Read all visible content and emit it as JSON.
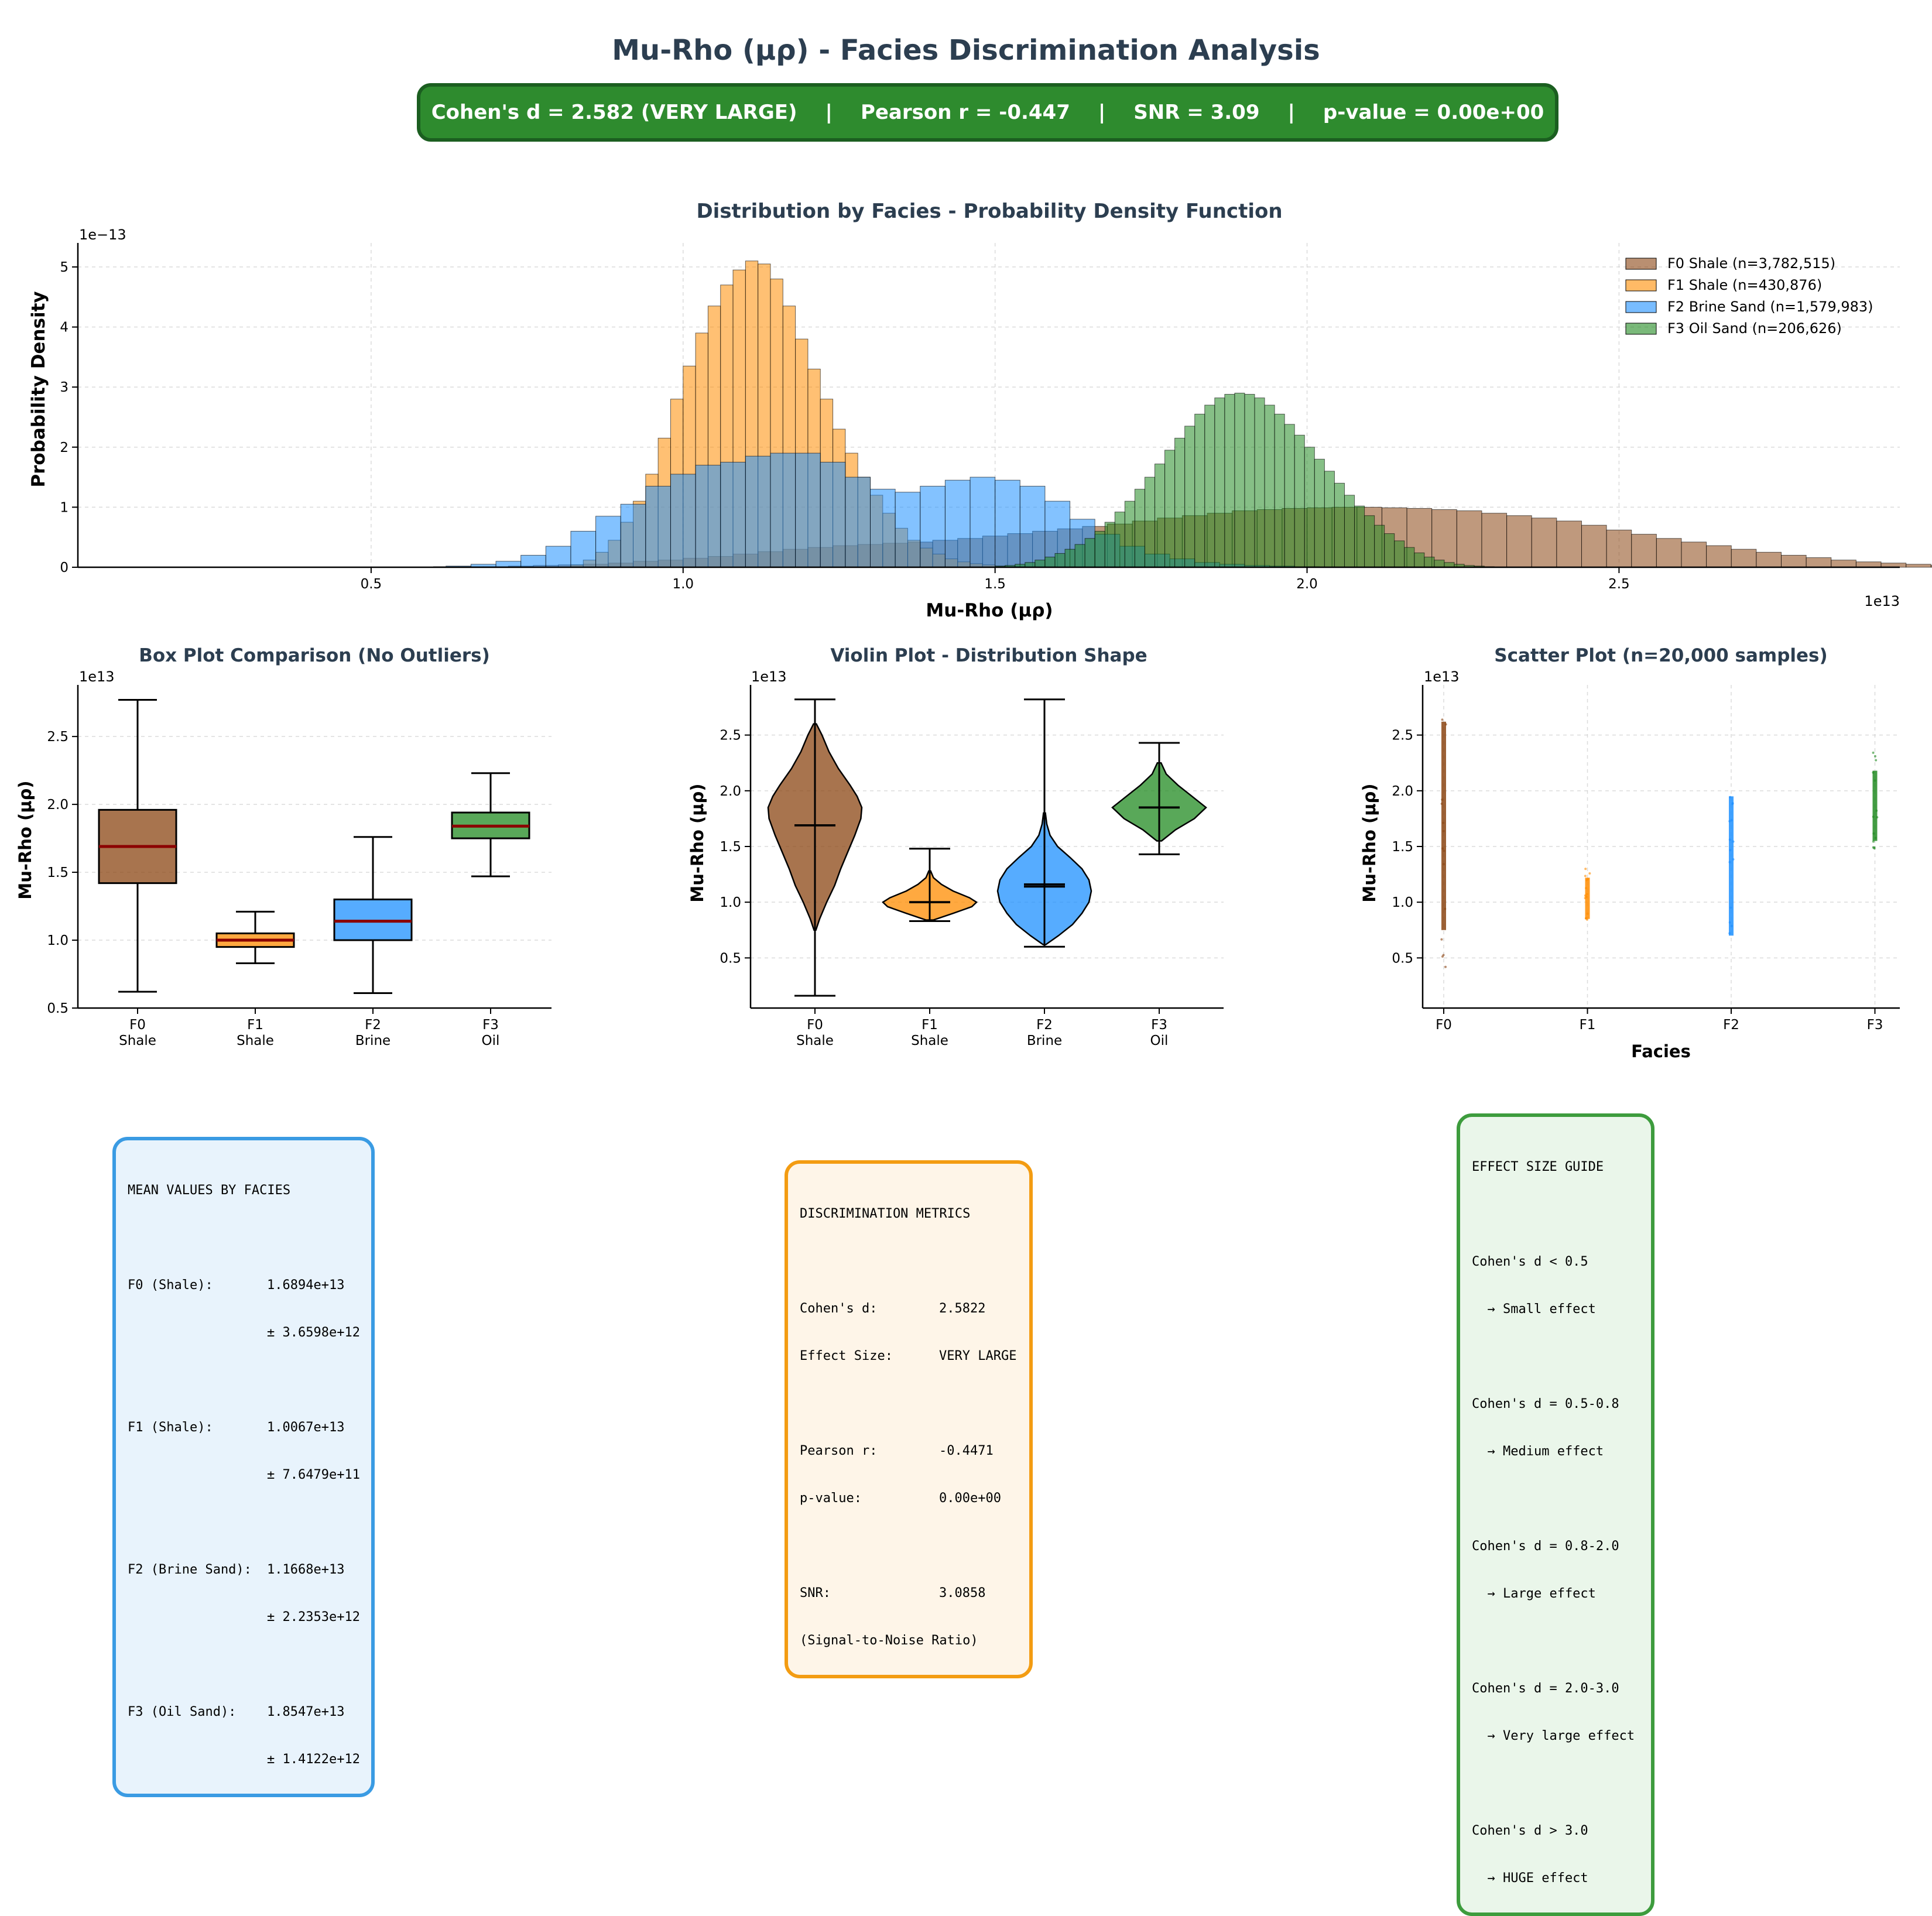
{
  "title": "Mu-Rho (μρ) - Facies Discrimination Analysis",
  "banner": {
    "items": [
      "Cohen's d = 2.582 (VERY LARGE)",
      "Pearson r = -0.447",
      "SNR = 3.09",
      "p-value = 0.00e+00"
    ],
    "separator": "|"
  },
  "colors": {
    "F0": "#8B4513",
    "F1": "#FF8C00",
    "F2": "#1E90FF",
    "F3": "#228B22",
    "banner": "#2e8b2e",
    "title": "#2c3e50"
  },
  "chart_data": [
    {
      "type": "bar",
      "subtype": "histogram",
      "title": "Distribution by Facies - Probability Density Function",
      "xlabel": "Mu-Rho (μρ)",
      "ylabel": "Probability Density",
      "x_offset_label": "1e13",
      "y_offset_label": "1e−13",
      "xlim": [
        0.03,
        2.95
      ],
      "ylim": [
        0,
        5.4
      ],
      "xticks": [
        "0.5",
        "1.0",
        "1.5",
        "2.0",
        "2.5"
      ],
      "yticks": [
        "0",
        "1",
        "2",
        "3",
        "4",
        "5"
      ],
      "legend_position": "top-right",
      "grid": true,
      "series": [
        {
          "name": "F0 Shale (n=3,782,515)",
          "key": "F0",
          "x_start": 0.6,
          "bin_width": 0.04,
          "values": [
            0.01,
            0.01,
            0.01,
            0.02,
            0.03,
            0.04,
            0.05,
            0.07,
            0.1,
            0.12,
            0.15,
            0.18,
            0.22,
            0.26,
            0.3,
            0.33,
            0.36,
            0.38,
            0.4,
            0.42,
            0.45,
            0.48,
            0.52,
            0.56,
            0.6,
            0.64,
            0.68,
            0.72,
            0.77,
            0.82,
            0.86,
            0.9,
            0.94,
            0.96,
            0.98,
            0.99,
            1.0,
            1.0,
            0.99,
            0.98,
            0.96,
            0.94,
            0.9,
            0.86,
            0.82,
            0.77,
            0.7,
            0.62,
            0.55,
            0.48,
            0.42,
            0.36,
            0.3,
            0.25,
            0.2,
            0.16,
            0.12,
            0.09,
            0.07,
            0.05,
            0.03,
            0.02,
            0.01,
            0.01
          ]
        },
        {
          "name": "F1 Shale (n=430,876)",
          "key": "F1",
          "x_start": 0.82,
          "bin_width": 0.02,
          "values": [
            0.04,
            0.12,
            0.25,
            0.45,
            0.75,
            1.1,
            1.55,
            2.15,
            2.8,
            3.35,
            3.9,
            4.35,
            4.7,
            4.95,
            5.1,
            5.05,
            4.8,
            4.35,
            3.8,
            3.3,
            2.8,
            2.3,
            1.9,
            1.5,
            1.2,
            0.9,
            0.65,
            0.45,
            0.32,
            0.22,
            0.14,
            0.09,
            0.06,
            0.04,
            0.02,
            0.01
          ]
        },
        {
          "name": "F2 Brine Sand (n=1,579,983)",
          "key": "F2",
          "x_start": 0.62,
          "bin_width": 0.04,
          "values": [
            0.02,
            0.05,
            0.1,
            0.2,
            0.35,
            0.6,
            0.85,
            1.05,
            1.35,
            1.55,
            1.7,
            1.75,
            1.85,
            1.9,
            1.9,
            1.75,
            1.5,
            1.3,
            1.25,
            1.35,
            1.45,
            1.5,
            1.45,
            1.35,
            1.1,
            0.8,
            0.55,
            0.35,
            0.22,
            0.14,
            0.08,
            0.05,
            0.03,
            0.02,
            0.01
          ]
        },
        {
          "name": "F3 Oil Sand (n=206,626)",
          "key": "F3",
          "x_start": 1.5,
          "bin_width": 0.016,
          "values": [
            0.02,
            0.03,
            0.05,
            0.08,
            0.12,
            0.17,
            0.23,
            0.3,
            0.38,
            0.48,
            0.6,
            0.75,
            0.92,
            1.1,
            1.3,
            1.5,
            1.72,
            1.95,
            2.15,
            2.35,
            2.55,
            2.7,
            2.82,
            2.88,
            2.9,
            2.88,
            2.82,
            2.7,
            2.55,
            2.38,
            2.2,
            2.0,
            1.8,
            1.6,
            1.4,
            1.2,
            1.02,
            0.86,
            0.7,
            0.56,
            0.44,
            0.33,
            0.24,
            0.17,
            0.12,
            0.08,
            0.05,
            0.03,
            0.02,
            0.01
          ]
        }
      ]
    },
    {
      "type": "box",
      "title": "Box Plot Comparison (No Outliers)",
      "ylabel": "Mu-Rho (μρ)",
      "y_offset_label": "1e13",
      "ylim": [
        0.5,
        2.88
      ],
      "yticks": [
        "0.5",
        "1.0",
        "1.5",
        "2.0",
        "2.5"
      ],
      "categories": [
        "F0\nShale",
        "F1\nShale",
        "F2\nBrine",
        "F3\nOil"
      ],
      "boxes": [
        {
          "key": "F0",
          "whisker_low": 0.62,
          "q1": 1.42,
          "median": 1.69,
          "q3": 1.96,
          "whisker_high": 2.77
        },
        {
          "key": "F1",
          "whisker_low": 0.83,
          "q1": 0.95,
          "median": 1.0,
          "q3": 1.05,
          "whisker_high": 1.21
        },
        {
          "key": "F2",
          "whisker_low": 0.61,
          "q1": 1.0,
          "median": 1.14,
          "q3": 1.3,
          "whisker_high": 1.76
        },
        {
          "key": "F3",
          "whisker_low": 1.47,
          "q1": 1.75,
          "median": 1.84,
          "q3": 1.94,
          "whisker_high": 2.23
        }
      ]
    },
    {
      "type": "violin",
      "title": "Violin Plot - Distribution Shape",
      "ylabel": "Mu-Rho (μρ)",
      "y_offset_label": "1e13",
      "ylim": [
        0.05,
        2.95
      ],
      "yticks": [
        "0.5",
        "1.0",
        "1.5",
        "2.0",
        "2.5"
      ],
      "categories": [
        "F0\nShale",
        "F1\nShale",
        "F2\nBrine",
        "F3\nOil"
      ],
      "violins": [
        {
          "key": "F0",
          "min": 0.16,
          "max": 2.82,
          "mean": 1.69,
          "median": 1.69,
          "shape": [
            [
              0.75,
              0.02
            ],
            [
              0.85,
              0.1
            ],
            [
              1.0,
              0.25
            ],
            [
              1.15,
              0.42
            ],
            [
              1.3,
              0.55
            ],
            [
              1.45,
              0.7
            ],
            [
              1.6,
              0.85
            ],
            [
              1.75,
              0.98
            ],
            [
              1.85,
              1.0
            ],
            [
              1.95,
              0.9
            ],
            [
              2.05,
              0.75
            ],
            [
              2.2,
              0.5
            ],
            [
              2.35,
              0.3
            ],
            [
              2.5,
              0.15
            ],
            [
              2.6,
              0.03
            ]
          ]
        },
        {
          "key": "F1",
          "min": 0.83,
          "max": 1.48,
          "mean": 1.0,
          "median": 1.0,
          "shape": [
            [
              0.84,
              0.08
            ],
            [
              0.9,
              0.5
            ],
            [
              0.96,
              0.9
            ],
            [
              1.0,
              1.0
            ],
            [
              1.04,
              0.85
            ],
            [
              1.1,
              0.5
            ],
            [
              1.16,
              0.25
            ],
            [
              1.22,
              0.08
            ],
            [
              1.28,
              0.02
            ]
          ]
        },
        {
          "key": "F2",
          "min": 0.6,
          "max": 2.82,
          "mean": 1.16,
          "median": 1.14,
          "shape": [
            [
              0.62,
              0.03
            ],
            [
              0.7,
              0.3
            ],
            [
              0.8,
              0.6
            ],
            [
              0.9,
              0.8
            ],
            [
              1.0,
              0.95
            ],
            [
              1.1,
              1.0
            ],
            [
              1.2,
              0.95
            ],
            [
              1.3,
              0.8
            ],
            [
              1.4,
              0.55
            ],
            [
              1.5,
              0.28
            ],
            [
              1.6,
              0.12
            ],
            [
              1.7,
              0.05
            ],
            [
              1.8,
              0.02
            ]
          ]
        },
        {
          "key": "F3",
          "min": 1.43,
          "max": 2.43,
          "mean": 1.85,
          "median": 1.85,
          "shape": [
            [
              1.55,
              0.05
            ],
            [
              1.65,
              0.35
            ],
            [
              1.75,
              0.75
            ],
            [
              1.85,
              1.0
            ],
            [
              1.95,
              0.7
            ],
            [
              2.05,
              0.4
            ],
            [
              2.15,
              0.15
            ],
            [
              2.25,
              0.04
            ]
          ]
        }
      ]
    },
    {
      "type": "scatter",
      "title": "Scatter Plot (n=20,000 samples)",
      "xlabel": "Facies",
      "ylabel": "Mu-Rho (μρ)",
      "y_offset_label": "1e13",
      "ylim": [
        0.05,
        2.95
      ],
      "yticks": [
        "0.5",
        "1.0",
        "1.5",
        "2.0",
        "2.5"
      ],
      "categories": [
        "F0",
        "F1",
        "F2",
        "F3"
      ],
      "strips": [
        {
          "key": "F0",
          "dense_low": 0.75,
          "dense_high": 2.62,
          "min": 0.22,
          "max": 2.75
        },
        {
          "key": "F1",
          "dense_low": 0.85,
          "dense_high": 1.22,
          "min": 0.84,
          "max": 1.32
        },
        {
          "key": "F2",
          "dense_low": 0.7,
          "dense_high": 1.95,
          "min": 0.65,
          "max": 2.2
        },
        {
          "key": "F3",
          "dense_low": 1.55,
          "dense_high": 2.18,
          "min": 1.45,
          "max": 2.35
        }
      ]
    }
  ],
  "means_box": {
    "title": "MEAN VALUES BY FACIES",
    "rows": [
      {
        "label": "F0 (Shale):",
        "mean": "1.6894e+13",
        "std": "± 3.6598e+12"
      },
      {
        "label": "F1 (Shale):",
        "mean": "1.0067e+13",
        "std": "± 7.6479e+11"
      },
      {
        "label": "F2 (Brine Sand):",
        "mean": "1.1668e+13",
        "std": "± 2.2353e+12"
      },
      {
        "label": "F3 (Oil Sand):",
        "mean": "1.8547e+13",
        "std": "± 1.4122e+12"
      }
    ]
  },
  "metrics_box": {
    "title": "DISCRIMINATION METRICS",
    "groups": [
      [
        [
          "Cohen's d:",
          "2.5822"
        ],
        [
          "Effect Size:",
          "VERY LARGE"
        ]
      ],
      [
        [
          "Pearson r:",
          "-0.4471"
        ],
        [
          "p-value:",
          "0.00e+00"
        ]
      ],
      [
        [
          "SNR:",
          "3.0858"
        ],
        [
          "(Signal-to-Noise Ratio)",
          ""
        ]
      ]
    ]
  },
  "guide_box": {
    "title": "EFFECT SIZE GUIDE",
    "items": [
      [
        "Cohen's d < 0.5",
        "  → Small effect"
      ],
      [
        "Cohen's d = 0.5-0.8",
        "  → Medium effect"
      ],
      [
        "Cohen's d = 0.8-2.0",
        "  → Large effect"
      ],
      [
        "Cohen's d = 2.0-3.0",
        "  → Very large effect"
      ],
      [
        "Cohen's d > 3.0",
        "  → HUGE effect"
      ]
    ]
  }
}
